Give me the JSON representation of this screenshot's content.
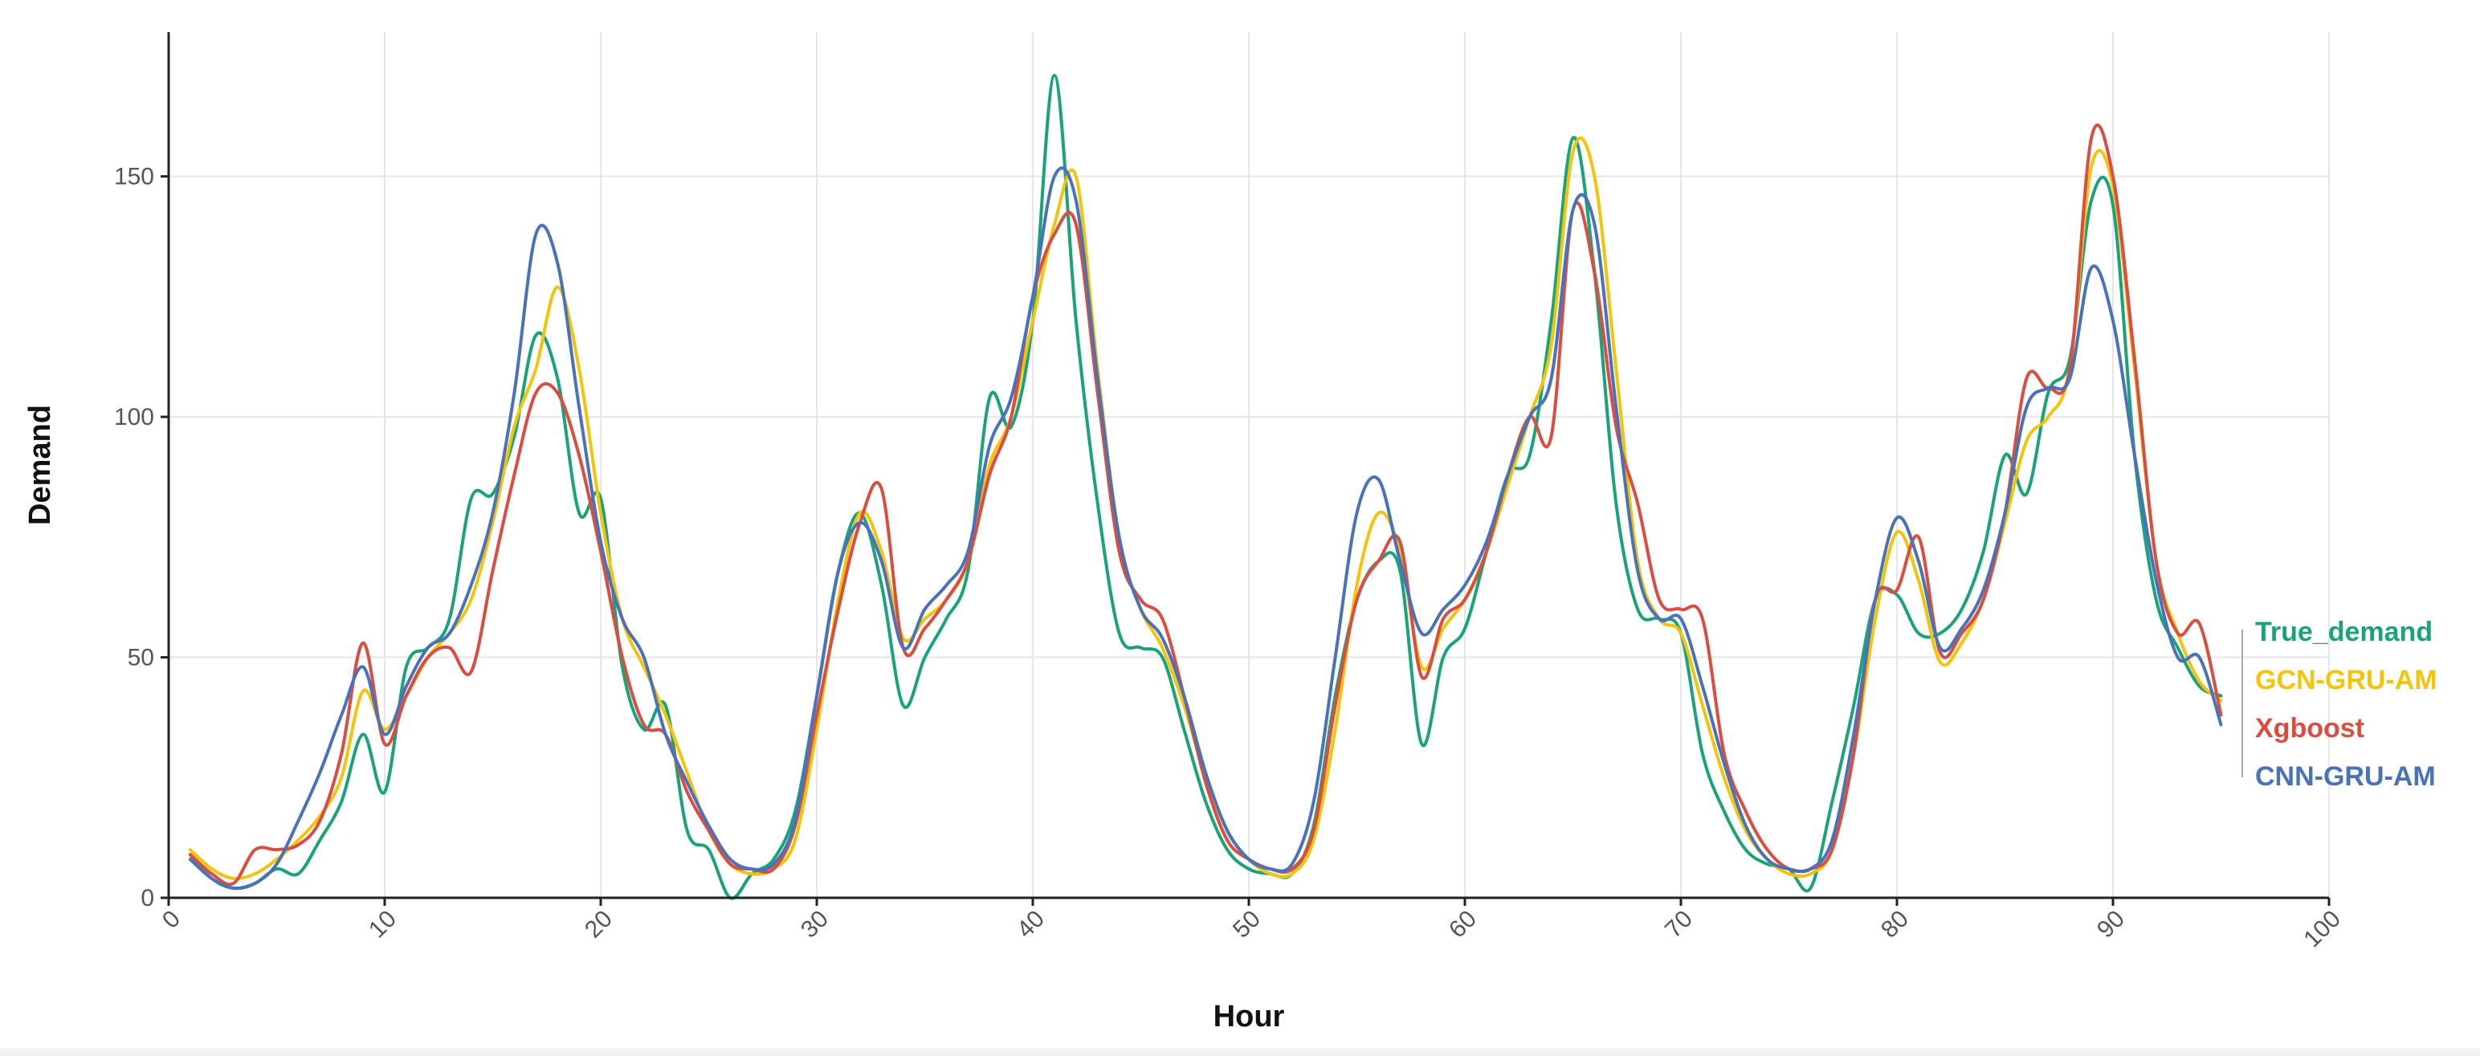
{
  "chart_data": {
    "type": "line",
    "title": "",
    "xlabel": "Hour",
    "ylabel": "Demand",
    "xlim": [
      0,
      100
    ],
    "ylim": [
      0,
      180
    ],
    "xticks": [
      0,
      10,
      20,
      30,
      40,
      50,
      60,
      70,
      80,
      90,
      100
    ],
    "yticks": [
      0,
      50,
      100,
      150
    ],
    "grid": true,
    "legend_placement": "right",
    "x": [
      1,
      2,
      3,
      4,
      5,
      6,
      7,
      8,
      9,
      10,
      11,
      12,
      13,
      14,
      15,
      16,
      17,
      18,
      19,
      20,
      21,
      22,
      23,
      24,
      25,
      26,
      27,
      28,
      29,
      30,
      31,
      32,
      33,
      34,
      35,
      36,
      37,
      38,
      39,
      40,
      41,
      42,
      43,
      44,
      45,
      46,
      47,
      48,
      49,
      50,
      51,
      52,
      53,
      54,
      55,
      56,
      57,
      58,
      59,
      60,
      61,
      62,
      63,
      64,
      65,
      66,
      67,
      68,
      69,
      70,
      71,
      72,
      73,
      74,
      75,
      76,
      77,
      78,
      79,
      80,
      81,
      82,
      83,
      84,
      85,
      86,
      87,
      88,
      89,
      90,
      91,
      92,
      93,
      94,
      95
    ],
    "series": [
      {
        "name": "True_demand",
        "color": "#1aa37a",
        "values": [
          9,
          4,
          2,
          3,
          6,
          5,
          12,
          20,
          34,
          22,
          48,
          52,
          58,
          83,
          84,
          96,
          117,
          108,
          80,
          83,
          48,
          35,
          40,
          14,
          10,
          0,
          5,
          8,
          18,
          42,
          68,
          80,
          65,
          40,
          50,
          58,
          68,
          104,
          98,
          120,
          171,
          120,
          82,
          55,
          52,
          50,
          35,
          20,
          10,
          6,
          5,
          5,
          15,
          42,
          62,
          70,
          68,
          32,
          50,
          56,
          72,
          88,
          92,
          120,
          158,
          130,
          82,
          60,
          58,
          55,
          30,
          18,
          10,
          7,
          6,
          2,
          20,
          40,
          62,
          63,
          55,
          55,
          60,
          72,
          92,
          84,
          105,
          112,
          145,
          144,
          92,
          62,
          52,
          44,
          42
        ]
      },
      {
        "name": "GCN-GRU-AM",
        "color": "#f2c40c",
        "values": [
          10,
          6,
          4,
          5,
          8,
          12,
          17,
          25,
          43,
          35,
          42,
          50,
          55,
          62,
          78,
          98,
          110,
          127,
          110,
          80,
          58,
          48,
          38,
          26,
          14,
          7,
          5,
          6,
          12,
          35,
          62,
          80,
          72,
          54,
          58,
          62,
          70,
          90,
          100,
          120,
          140,
          150,
          110,
          75,
          60,
          52,
          40,
          25,
          14,
          8,
          5,
          5,
          12,
          35,
          65,
          80,
          72,
          48,
          56,
          62,
          72,
          86,
          100,
          115,
          155,
          150,
          110,
          70,
          58,
          55,
          40,
          25,
          14,
          8,
          5,
          5,
          10,
          30,
          58,
          76,
          66,
          49,
          53,
          62,
          78,
          95,
          100,
          110,
          152,
          148,
          110,
          70,
          55,
          45,
          41
        ]
      },
      {
        "name": "Xgboost",
        "color": "#d94e41",
        "values": [
          9,
          5,
          3,
          10,
          10,
          11,
          16,
          30,
          53,
          32,
          42,
          50,
          52,
          47,
          68,
          88,
          105,
          105,
          92,
          72,
          50,
          36,
          34,
          22,
          14,
          7,
          6,
          6,
          15,
          38,
          60,
          78,
          85,
          52,
          56,
          62,
          70,
          88,
          100,
          125,
          138,
          140,
          105,
          72,
          62,
          58,
          42,
          24,
          12,
          8,
          6,
          6,
          14,
          40,
          62,
          70,
          74,
          46,
          58,
          62,
          72,
          88,
          100,
          96,
          143,
          130,
          98,
          82,
          62,
          60,
          58,
          30,
          18,
          10,
          6,
          6,
          10,
          30,
          62,
          64,
          75,
          51,
          55,
          62,
          80,
          108,
          106,
          110,
          158,
          150,
          112,
          70,
          55,
          57,
          38
        ]
      },
      {
        "name": "CNN-GRU-AM",
        "color": "#4a72b8",
        "values": [
          8,
          4,
          2,
          3,
          7,
          16,
          26,
          38,
          48,
          34,
          44,
          52,
          55,
          65,
          80,
          105,
          138,
          132,
          102,
          74,
          58,
          50,
          34,
          24,
          15,
          8,
          6,
          7,
          16,
          42,
          68,
          78,
          70,
          52,
          60,
          65,
          72,
          94,
          104,
          125,
          150,
          145,
          108,
          75,
          60,
          54,
          42,
          26,
          14,
          8,
          6,
          7,
          20,
          50,
          80,
          87,
          70,
          55,
          60,
          65,
          74,
          88,
          100,
          108,
          143,
          140,
          102,
          68,
          58,
          58,
          44,
          28,
          15,
          8,
          6,
          6,
          12,
          34,
          62,
          79,
          70,
          52,
          56,
          64,
          80,
          102,
          106,
          108,
          131,
          120,
          92,
          66,
          50,
          50,
          36
        ]
      }
    ]
  }
}
